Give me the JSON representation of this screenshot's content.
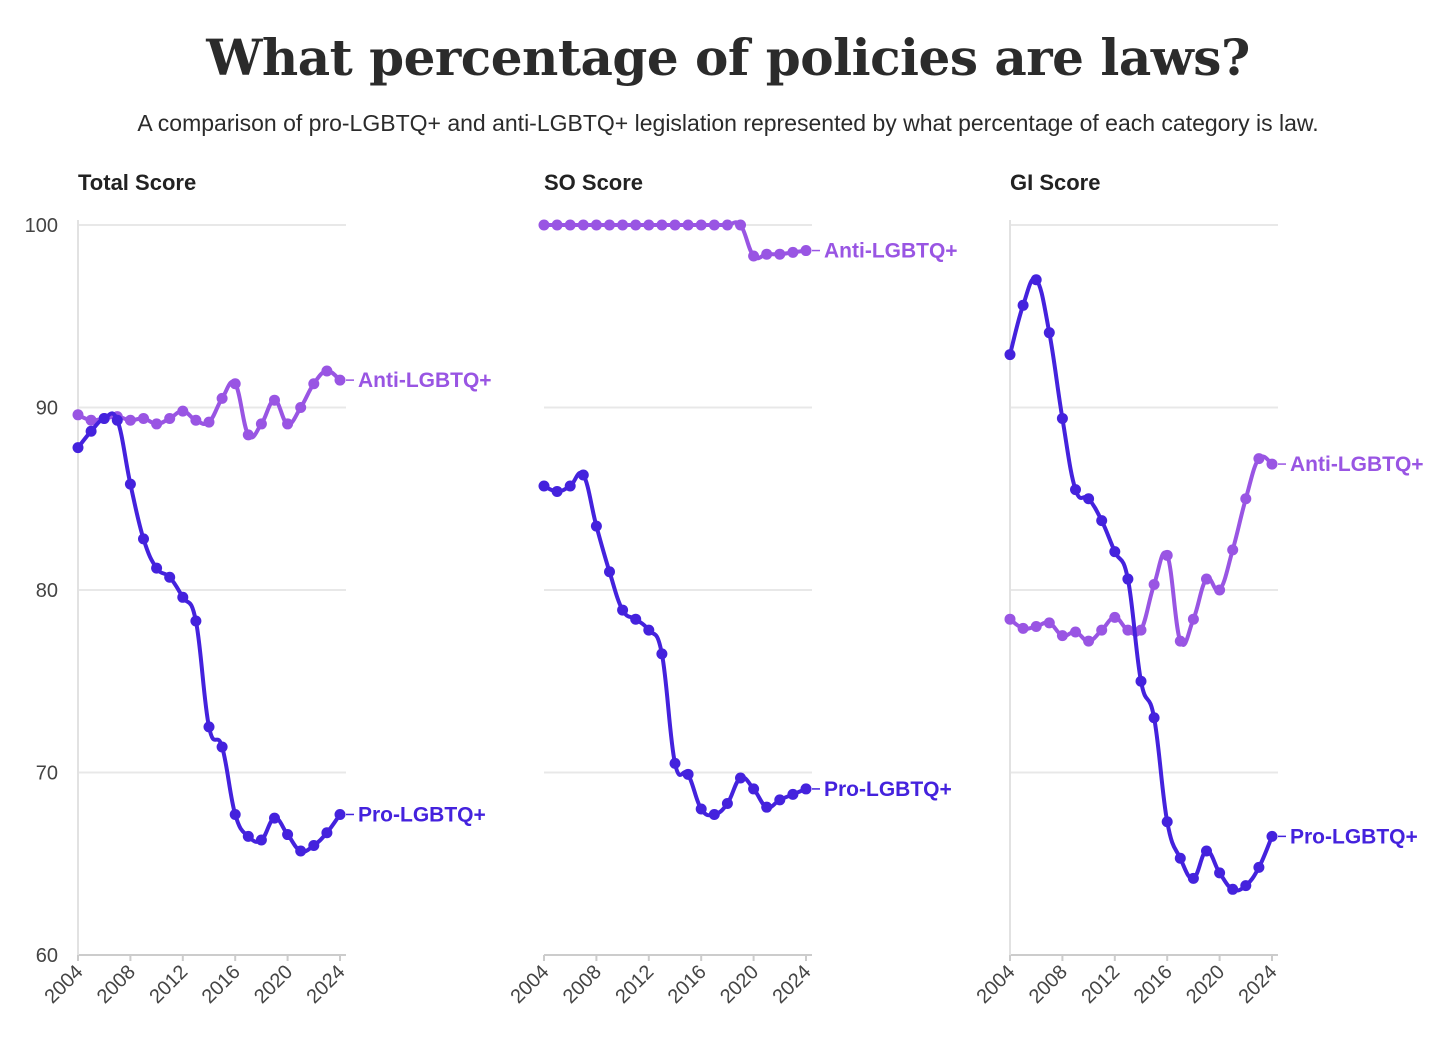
{
  "title": "What percentage of policies are laws?",
  "subtitle": "A comparison of pro-LGBTQ+ and anti-LGBTQ+ legislation represented by what percentage of each category is law.",
  "colors": {
    "pro": "#4422dd",
    "anti": "#9955e3",
    "grid": "#e8e8e8",
    "axis": "#cccccc"
  },
  "chart_data": [
    {
      "type": "line",
      "title": "Total Score",
      "ylim": [
        60,
        100
      ],
      "yticks": [
        60,
        70,
        80,
        90,
        100
      ],
      "xticks": [
        2004,
        2008,
        2012,
        2016,
        2020,
        2024
      ],
      "grid": true,
      "x": [
        2004,
        2005,
        2006,
        2007,
        2008,
        2009,
        2010,
        2011,
        2012,
        2013,
        2014,
        2015,
        2016,
        2017,
        2018,
        2019,
        2020,
        2021,
        2022,
        2023,
        2024
      ],
      "series": [
        {
          "name": "Anti-LGBTQ+",
          "key": "anti",
          "values": [
            89.6,
            89.3,
            89.4,
            89.5,
            89.3,
            89.4,
            89.1,
            89.4,
            89.8,
            89.3,
            89.2,
            90.5,
            91.3,
            88.5,
            89.1,
            90.4,
            89.1,
            90.0,
            91.3,
            92.0,
            91.5
          ]
        },
        {
          "name": "Pro-LGBTQ+",
          "key": "pro",
          "values": [
            87.8,
            88.7,
            89.4,
            89.3,
            85.8,
            82.8,
            81.2,
            80.7,
            79.6,
            78.3,
            72.5,
            71.4,
            67.7,
            66.5,
            66.3,
            67.5,
            66.6,
            65.7,
            66.0,
            66.7,
            67.7
          ]
        }
      ]
    },
    {
      "type": "line",
      "title": "SO Score",
      "ylim": [
        60,
        100
      ],
      "yticks": [
        60,
        70,
        80,
        90,
        100
      ],
      "xticks": [
        2004,
        2008,
        2012,
        2016,
        2020,
        2024
      ],
      "grid": true,
      "x": [
        2004,
        2005,
        2006,
        2007,
        2008,
        2009,
        2010,
        2011,
        2012,
        2013,
        2014,
        2015,
        2016,
        2017,
        2018,
        2019,
        2020,
        2021,
        2022,
        2023,
        2024
      ],
      "series": [
        {
          "name": "Anti-LGBTQ+",
          "key": "anti",
          "values": [
            100,
            100,
            100,
            100,
            100,
            100,
            100,
            100,
            100,
            100,
            100,
            100,
            100,
            100,
            100,
            100,
            98.3,
            98.4,
            98.4,
            98.5,
            98.6
          ]
        },
        {
          "name": "Pro-LGBTQ+",
          "key": "pro",
          "values": [
            85.7,
            85.4,
            85.7,
            86.3,
            83.5,
            81.0,
            78.9,
            78.4,
            77.8,
            76.5,
            70.5,
            69.9,
            68.0,
            67.7,
            68.3,
            69.7,
            69.1,
            68.1,
            68.5,
            68.8,
            69.1
          ]
        }
      ]
    },
    {
      "type": "line",
      "title": "GI Score",
      "ylim": [
        60,
        100
      ],
      "yticks": [
        60,
        70,
        80,
        90,
        100
      ],
      "xticks": [
        2004,
        2008,
        2012,
        2016,
        2020,
        2024
      ],
      "grid": true,
      "x": [
        2004,
        2005,
        2006,
        2007,
        2008,
        2009,
        2010,
        2011,
        2012,
        2013,
        2014,
        2015,
        2016,
        2017,
        2018,
        2019,
        2020,
        2021,
        2022,
        2023,
        2024
      ],
      "series": [
        {
          "name": "Anti-LGBTQ+",
          "key": "anti",
          "values": [
            78.4,
            77.9,
            78.0,
            78.2,
            77.5,
            77.7,
            77.2,
            77.8,
            78.5,
            77.8,
            77.8,
            80.3,
            81.9,
            77.2,
            78.4,
            80.6,
            80.0,
            82.2,
            85.0,
            87.2,
            86.9
          ]
        },
        {
          "name": "Pro-LGBTQ+",
          "key": "pro",
          "values": [
            92.9,
            95.6,
            97.0,
            94.1,
            89.4,
            85.5,
            85.0,
            83.8,
            82.1,
            80.6,
            75.0,
            73.0,
            67.3,
            65.3,
            64.2,
            65.7,
            64.5,
            63.6,
            63.8,
            64.8,
            66.5
          ]
        }
      ]
    }
  ]
}
